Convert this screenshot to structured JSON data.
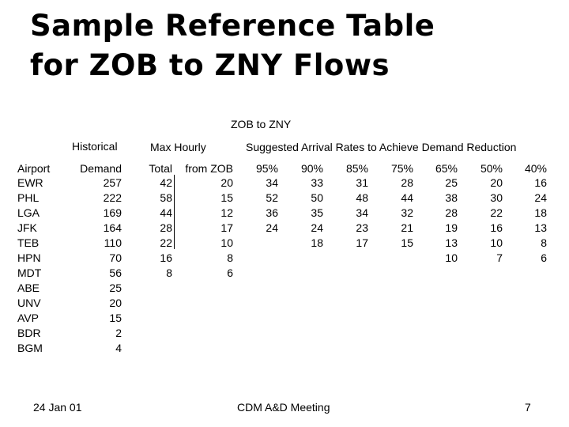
{
  "title": {
    "line1": "Sample Reference Table",
    "line2": "for ZOB to ZNY Flows"
  },
  "table": {
    "group_header": "ZOB to ZNY",
    "header_row1": {
      "historical": "Historical",
      "max_hourly": "Max Hourly",
      "suggested": "Suggested Arrival Rates to Achieve Demand Reduction"
    },
    "columns": [
      "Airport",
      "Demand",
      "Total",
      "from ZOB",
      "95%",
      "90%",
      "85%",
      "75%",
      "65%",
      "50%",
      "40%"
    ],
    "rows": [
      [
        "EWR",
        "257",
        "42",
        "20",
        "34",
        "33",
        "31",
        "28",
        "25",
        "20",
        "16"
      ],
      [
        "PHL",
        "222",
        "58",
        "15",
        "52",
        "50",
        "48",
        "44",
        "38",
        "30",
        "24"
      ],
      [
        "LGA",
        "169",
        "44",
        "12",
        "36",
        "35",
        "34",
        "32",
        "28",
        "22",
        "18"
      ],
      [
        "JFK",
        "164",
        "28",
        "17",
        "24",
        "24",
        "23",
        "21",
        "19",
        "16",
        "13"
      ],
      [
        "TEB",
        "110",
        "22",
        "10",
        "",
        "18",
        "17",
        "15",
        "13",
        "10",
        "8"
      ],
      [
        "HPN",
        "70",
        "16",
        "8",
        "",
        "",
        "",
        "",
        "10",
        "7",
        "6"
      ],
      [
        "MDT",
        "56",
        "8",
        "6",
        "",
        "",
        "",
        "",
        "",
        "",
        ""
      ],
      [
        "ABE",
        "25",
        "",
        "",
        "",
        "",
        "",
        "",
        "",
        "",
        ""
      ],
      [
        "UNV",
        "20",
        "",
        "",
        "",
        "",
        "",
        "",
        "",
        "",
        ""
      ],
      [
        "AVP",
        "15",
        "",
        "",
        "",
        "",
        "",
        "",
        "",
        "",
        ""
      ],
      [
        "BDR",
        "2",
        "",
        "",
        "",
        "",
        "",
        "",
        "",
        "",
        ""
      ],
      [
        "BGM",
        "4",
        "",
        "",
        "",
        "",
        "",
        "",
        "",
        "",
        ""
      ]
    ]
  },
  "footer": {
    "date": "24 Jan 01",
    "meeting": "CDM A&D Meeting",
    "page": "7"
  }
}
